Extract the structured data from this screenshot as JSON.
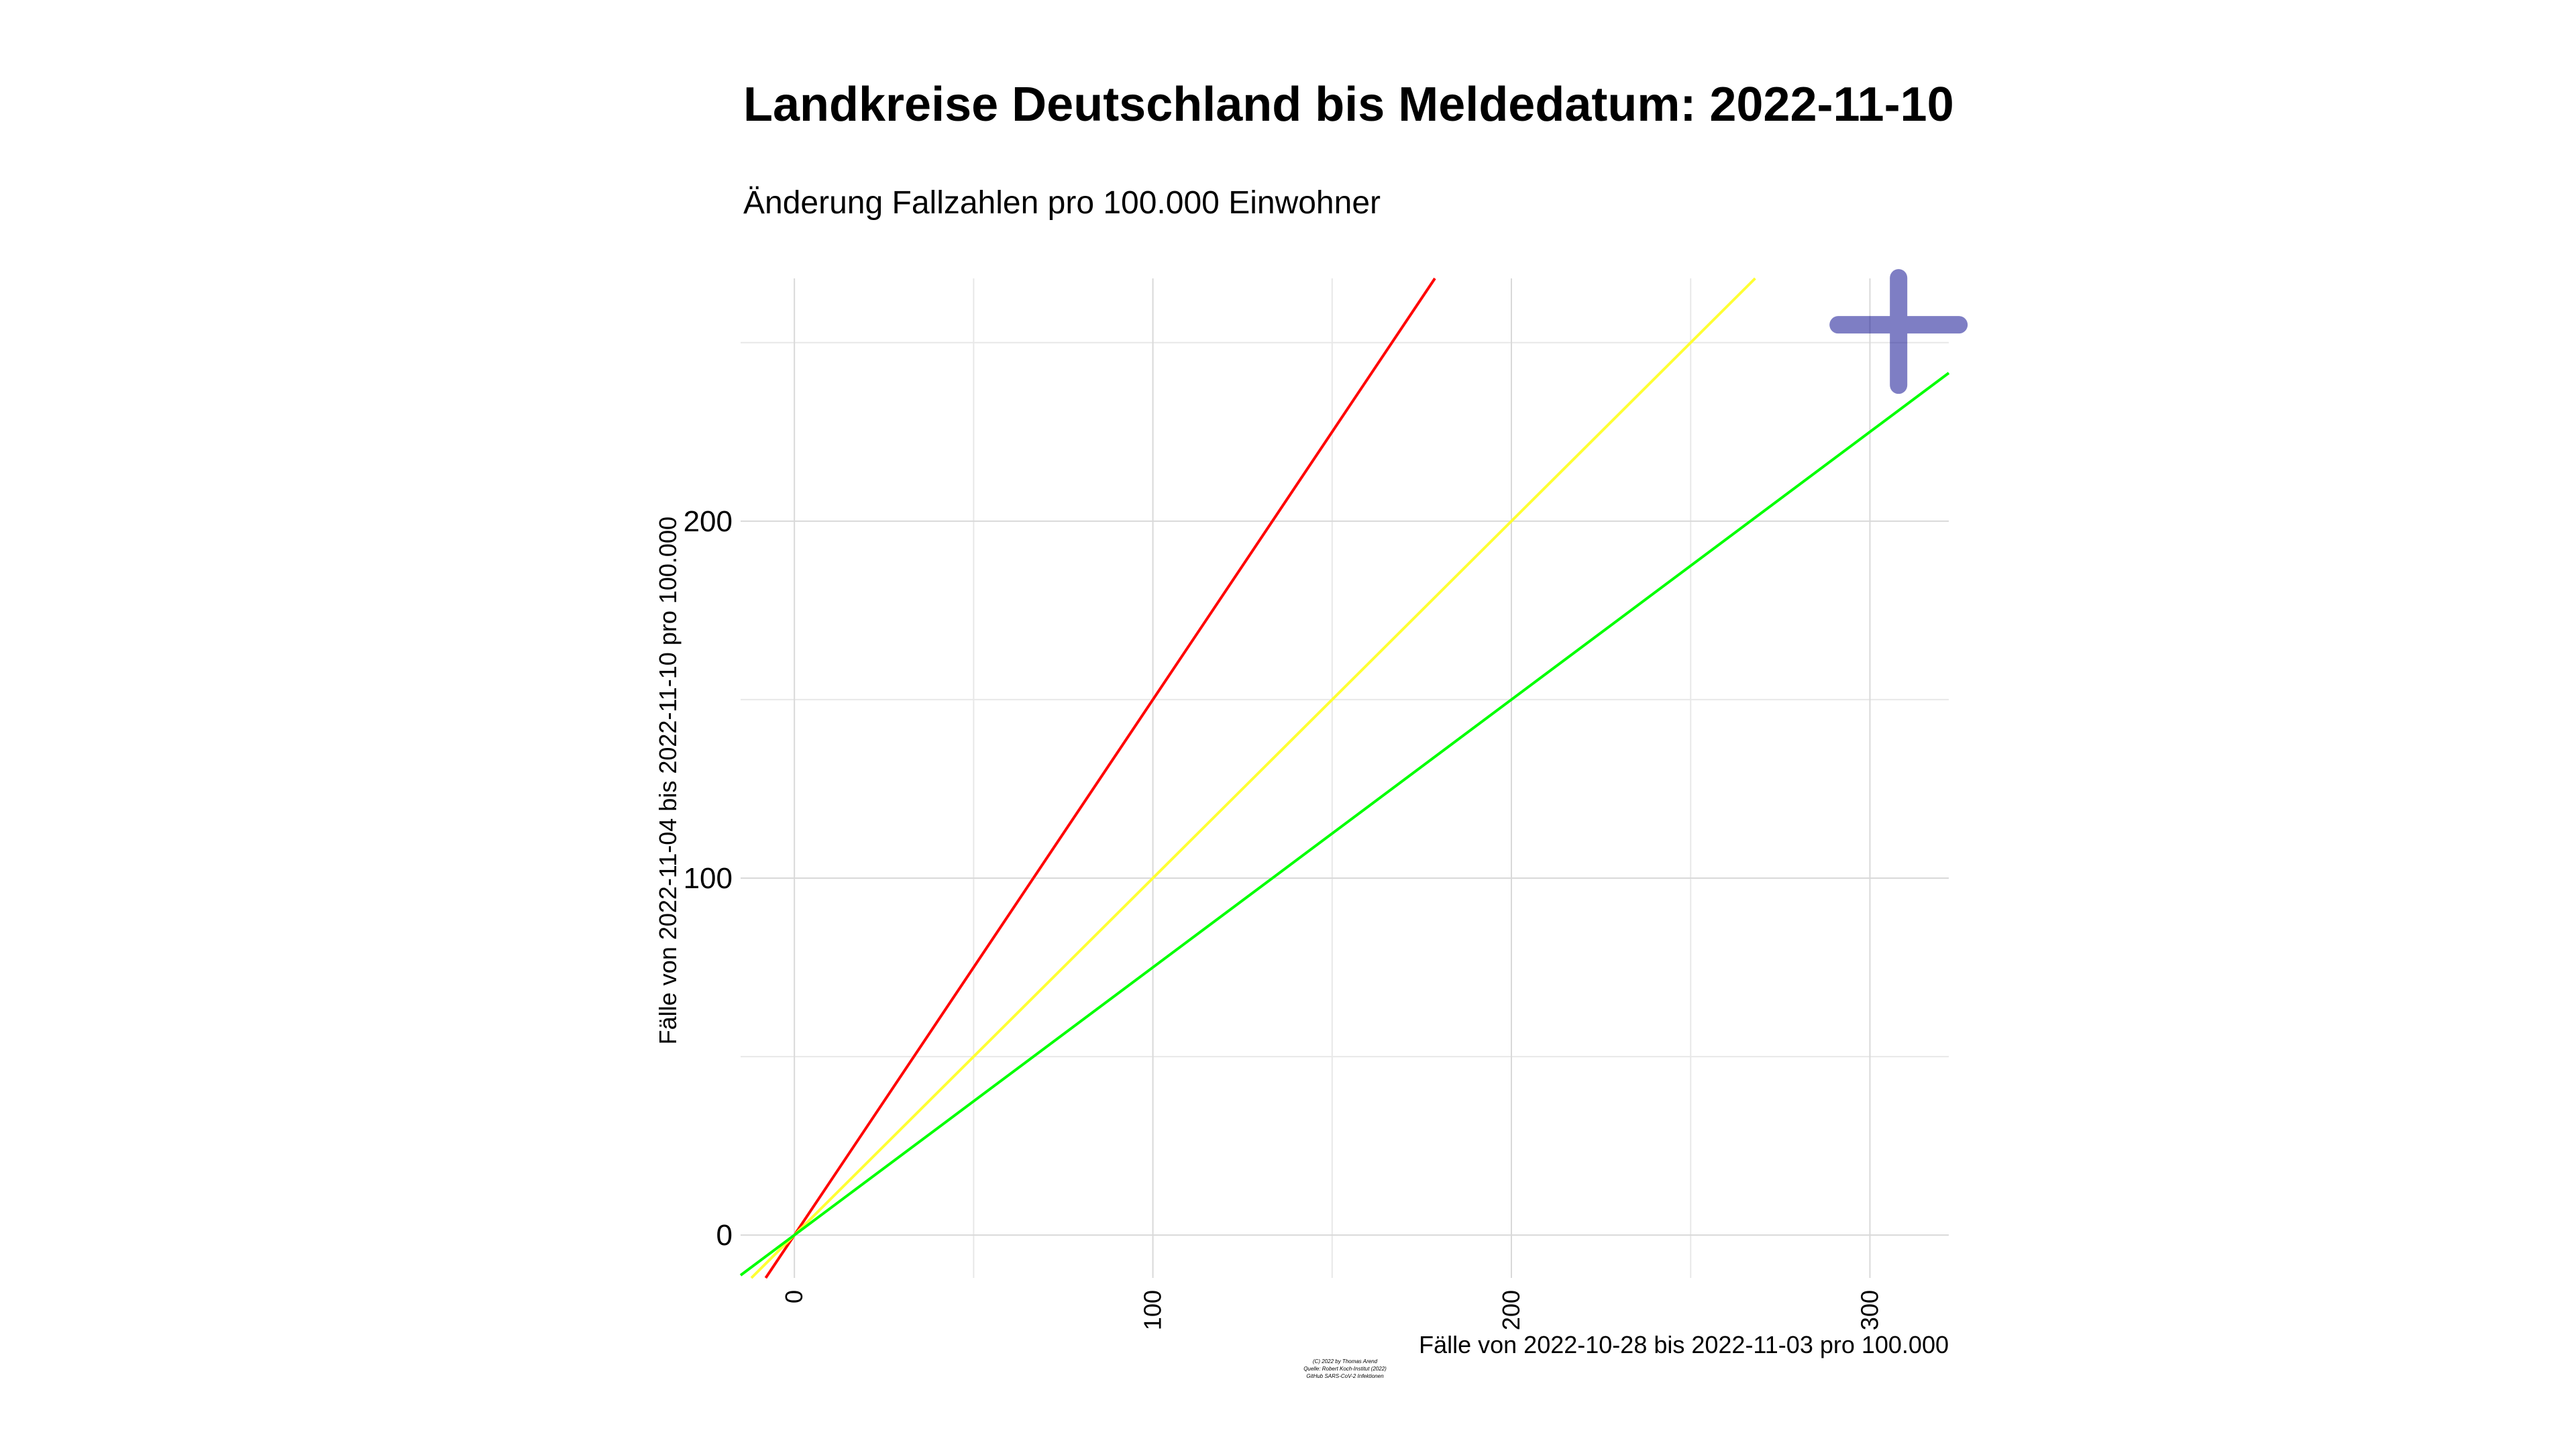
{
  "chart_data": {
    "type": "line",
    "title": "Landkreise Deutschland bis Meldedatum: 2022-11-10",
    "subtitle": "Änderung Fallzahlen pro 100.000 Einwohner",
    "xlabel": "Fälle von 2022-10-28 bis 2022-11-03 pro 100.000",
    "ylabel": "Fälle von 2022-11-04 bis 2022-11-10 pro 100.000",
    "xlim": [
      -15,
      322
    ],
    "ylim": [
      -12,
      268
    ],
    "x_ticks": [
      "0",
      "100",
      "200",
      "300"
    ],
    "y_ticks": [
      "0",
      "100",
      "200"
    ],
    "x_tick_values": [
      0,
      100,
      200,
      300
    ],
    "y_tick_values": [
      0,
      100,
      200
    ],
    "grid": true,
    "series": [
      {
        "slope": 1.5,
        "color": "#ff0000"
      },
      {
        "slope": 1.0,
        "color": "#ffff33"
      },
      {
        "slope": 0.75,
        "color": "#00ff00"
      }
    ],
    "points": [
      {
        "x": 308,
        "y": 255,
        "color": "#00008b"
      }
    ],
    "caption": [
      "(C) 2022 by Thomas Arend",
      "Quelle: Robert Koch-Institut (2022)",
      "GitHub SARS-CoV-2 Infektionen"
    ]
  }
}
